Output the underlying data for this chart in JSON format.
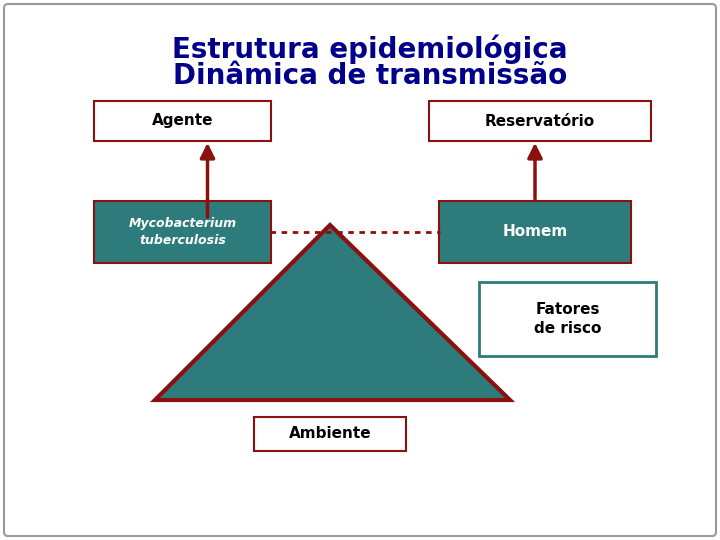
{
  "title_line1": "Estrutura epidemiológica",
  "title_line2": "Dinâmica de transmissão",
  "title_color": "#00008B",
  "bg_color": "#ffffff",
  "border_color": "#999999",
  "teal_color": "#2E7B7B",
  "dark_red": "#8B1010",
  "box_agente_label": "Agente",
  "box_reservatorio_label": "Reservatório",
  "box_ambiente_label": "Ambiente",
  "box_fatores_label": "Fatores\nde risco",
  "myco_label": "Mycobacterium\ntuberculosis",
  "homem_label": "Homem"
}
